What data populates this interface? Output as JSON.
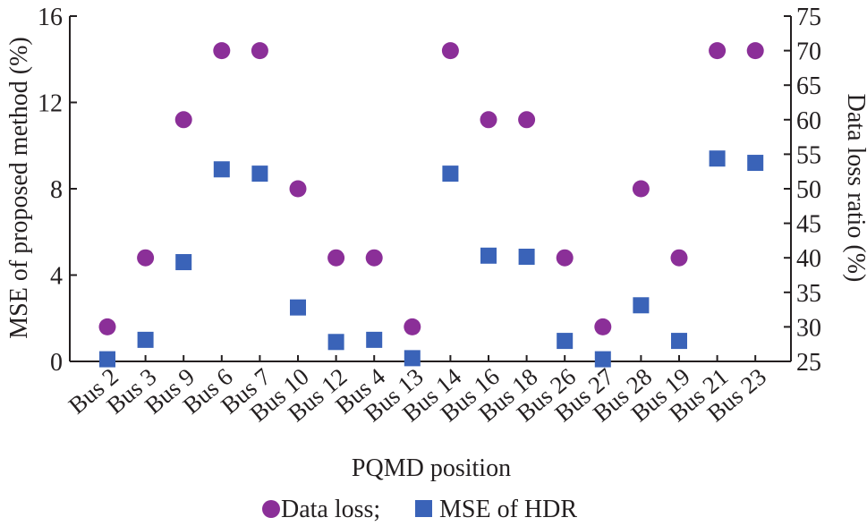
{
  "chart_data": {
    "type": "scatter",
    "categories": [
      "Bus 2",
      "Bus 3",
      "Bus 9",
      "Bus 6",
      "Bus 7",
      "Bus 10",
      "Bus 12",
      "Bus 4",
      "Bus 13",
      "Bus 14",
      "Bus 16",
      "Bus 18",
      "Bus 26",
      "Bus 27",
      "Bus 28",
      "Bus 19",
      "Bus 21",
      "Bus 23"
    ],
    "xlabel": "PQMD position",
    "ylabel_left": "MSE of proposed method (%)",
    "ylabel_right": "Data loss ratio (%)",
    "ylim_left": [
      0,
      16
    ],
    "ylim_right": [
      25,
      75
    ],
    "yticks_left": [
      0,
      4,
      8,
      12,
      16
    ],
    "yticks_right": [
      25,
      30,
      35,
      40,
      45,
      50,
      55,
      60,
      65,
      70,
      75
    ],
    "legend_placement": "bottom",
    "series": [
      {
        "name": "Data loss;",
        "axis": "right",
        "marker": "circle",
        "color": "#8b2f98",
        "values": [
          30,
          40,
          60,
          70,
          70,
          50,
          40,
          40,
          30,
          70,
          60,
          60,
          40,
          30,
          50,
          40,
          70,
          70
        ]
      },
      {
        "name": "MSE of HDR",
        "axis": "left",
        "marker": "square",
        "color": "#3a63b8",
        "values": [
          0.1,
          1.0,
          4.6,
          8.9,
          8.7,
          2.5,
          0.9,
          1.0,
          0.15,
          8.7,
          4.9,
          4.85,
          0.95,
          0.1,
          2.6,
          0.95,
          9.4,
          9.2
        ]
      }
    ]
  }
}
